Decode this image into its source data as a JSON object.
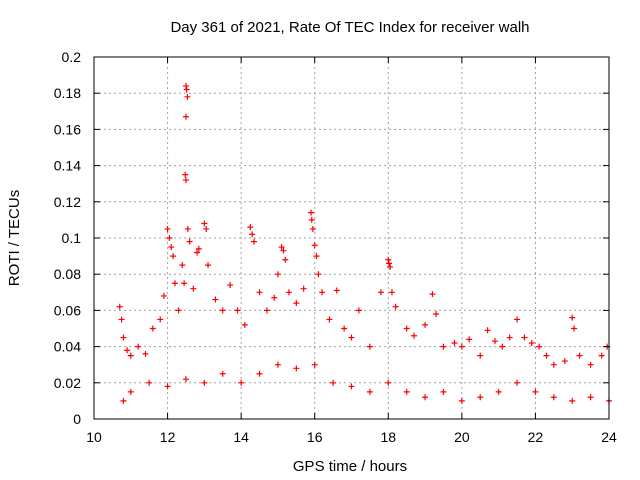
{
  "chart_data": {
    "type": "scatter",
    "title": "Day 361 of 2021, Rate Of TEC Index for receiver walh",
    "xlabel": "GPS time / hours",
    "ylabel": "ROTI / TECUs",
    "xlim": [
      10,
      24
    ],
    "ylim": [
      0,
      0.2
    ],
    "x_ticks": [
      10,
      12,
      14,
      16,
      18,
      20,
      22,
      24
    ],
    "x_tick_labels": [
      "10",
      "12",
      "14",
      "16",
      "18",
      "20",
      "22",
      "24"
    ],
    "y_ticks": [
      0,
      0.02,
      0.04,
      0.06,
      0.08,
      0.1,
      0.12,
      0.14,
      0.16,
      0.18,
      0.2
    ],
    "y_tick_labels": [
      "0",
      "0.02",
      "0.04",
      "0.06",
      "0.08",
      "0.1",
      "0.12",
      "0.14",
      "0.16",
      "0.18",
      "0.2"
    ],
    "grid": true,
    "marker": "+",
    "series": [
      {
        "name": "ROTI",
        "color": "#ff0000",
        "points": [
          [
            10.7,
            0.062
          ],
          [
            10.75,
            0.055
          ],
          [
            10.8,
            0.045
          ],
          [
            10.9,
            0.038
          ],
          [
            11.0,
            0.035
          ],
          [
            11.2,
            0.04
          ],
          [
            11.4,
            0.036
          ],
          [
            11.6,
            0.05
          ],
          [
            11.8,
            0.055
          ],
          [
            11.9,
            0.068
          ],
          [
            12.0,
            0.105
          ],
          [
            12.05,
            0.1
          ],
          [
            12.1,
            0.095
          ],
          [
            12.15,
            0.09
          ],
          [
            12.2,
            0.075
          ],
          [
            12.3,
            0.06
          ],
          [
            12.4,
            0.085
          ],
          [
            12.45,
            0.075
          ],
          [
            12.5,
            0.184
          ],
          [
            12.52,
            0.182
          ],
          [
            12.54,
            0.178
          ],
          [
            12.5,
            0.167
          ],
          [
            12.48,
            0.135
          ],
          [
            12.5,
            0.132
          ],
          [
            12.55,
            0.105
          ],
          [
            12.6,
            0.098
          ],
          [
            12.7,
            0.072
          ],
          [
            12.8,
            0.092
          ],
          [
            12.85,
            0.094
          ],
          [
            13.0,
            0.108
          ],
          [
            13.05,
            0.105
          ],
          [
            13.1,
            0.085
          ],
          [
            13.3,
            0.066
          ],
          [
            13.5,
            0.06
          ],
          [
            13.7,
            0.074
          ],
          [
            13.9,
            0.06
          ],
          [
            14.1,
            0.052
          ],
          [
            14.25,
            0.106
          ],
          [
            14.3,
            0.102
          ],
          [
            14.35,
            0.098
          ],
          [
            14.5,
            0.07
          ],
          [
            14.7,
            0.06
          ],
          [
            14.9,
            0.067
          ],
          [
            15.0,
            0.08
          ],
          [
            15.1,
            0.095
          ],
          [
            15.15,
            0.093
          ],
          [
            15.2,
            0.088
          ],
          [
            15.3,
            0.07
          ],
          [
            15.5,
            0.064
          ],
          [
            15.7,
            0.072
          ],
          [
            15.9,
            0.114
          ],
          [
            15.92,
            0.11
          ],
          [
            15.95,
            0.105
          ],
          [
            16.0,
            0.096
          ],
          [
            16.05,
            0.09
          ],
          [
            16.1,
            0.08
          ],
          [
            16.2,
            0.07
          ],
          [
            16.4,
            0.055
          ],
          [
            16.6,
            0.071
          ],
          [
            16.8,
            0.05
          ],
          [
            17.0,
            0.045
          ],
          [
            17.2,
            0.06
          ],
          [
            17.5,
            0.04
          ],
          [
            17.8,
            0.07
          ],
          [
            18.0,
            0.088
          ],
          [
            18.02,
            0.086
          ],
          [
            18.05,
            0.084
          ],
          [
            18.1,
            0.07
          ],
          [
            18.2,
            0.062
          ],
          [
            18.5,
            0.05
          ],
          [
            18.7,
            0.046
          ],
          [
            19.0,
            0.052
          ],
          [
            19.2,
            0.069
          ],
          [
            19.3,
            0.058
          ],
          [
            19.5,
            0.04
          ],
          [
            19.8,
            0.042
          ],
          [
            20.0,
            0.04
          ],
          [
            20.2,
            0.044
          ],
          [
            20.5,
            0.035
          ],
          [
            20.7,
            0.049
          ],
          [
            20.9,
            0.043
          ],
          [
            21.1,
            0.04
          ],
          [
            21.3,
            0.045
          ],
          [
            21.5,
            0.055
          ],
          [
            21.7,
            0.045
          ],
          [
            21.9,
            0.042
          ],
          [
            22.1,
            0.04
          ],
          [
            22.3,
            0.035
          ],
          [
            22.5,
            0.03
          ],
          [
            22.8,
            0.032
          ],
          [
            23.0,
            0.056
          ],
          [
            23.05,
            0.05
          ],
          [
            23.2,
            0.035
          ],
          [
            23.5,
            0.03
          ],
          [
            23.8,
            0.035
          ],
          [
            23.95,
            0.04
          ],
          [
            10.8,
            0.01
          ],
          [
            11.0,
            0.015
          ],
          [
            11.5,
            0.02
          ],
          [
            12.0,
            0.018
          ],
          [
            12.5,
            0.022
          ],
          [
            13.0,
            0.02
          ],
          [
            13.5,
            0.025
          ],
          [
            14.0,
            0.02
          ],
          [
            14.5,
            0.025
          ],
          [
            15.0,
            0.03
          ],
          [
            15.5,
            0.028
          ],
          [
            16.0,
            0.03
          ],
          [
            16.5,
            0.02
          ],
          [
            17.0,
            0.018
          ],
          [
            17.5,
            0.015
          ],
          [
            18.0,
            0.02
          ],
          [
            18.5,
            0.015
          ],
          [
            19.0,
            0.012
          ],
          [
            19.5,
            0.015
          ],
          [
            20.0,
            0.01
          ],
          [
            20.5,
            0.012
          ],
          [
            21.0,
            0.015
          ],
          [
            21.5,
            0.02
          ],
          [
            22.0,
            0.015
          ],
          [
            22.5,
            0.012
          ],
          [
            23.0,
            0.01
          ],
          [
            23.5,
            0.012
          ],
          [
            24.0,
            0.01
          ]
        ]
      }
    ]
  }
}
